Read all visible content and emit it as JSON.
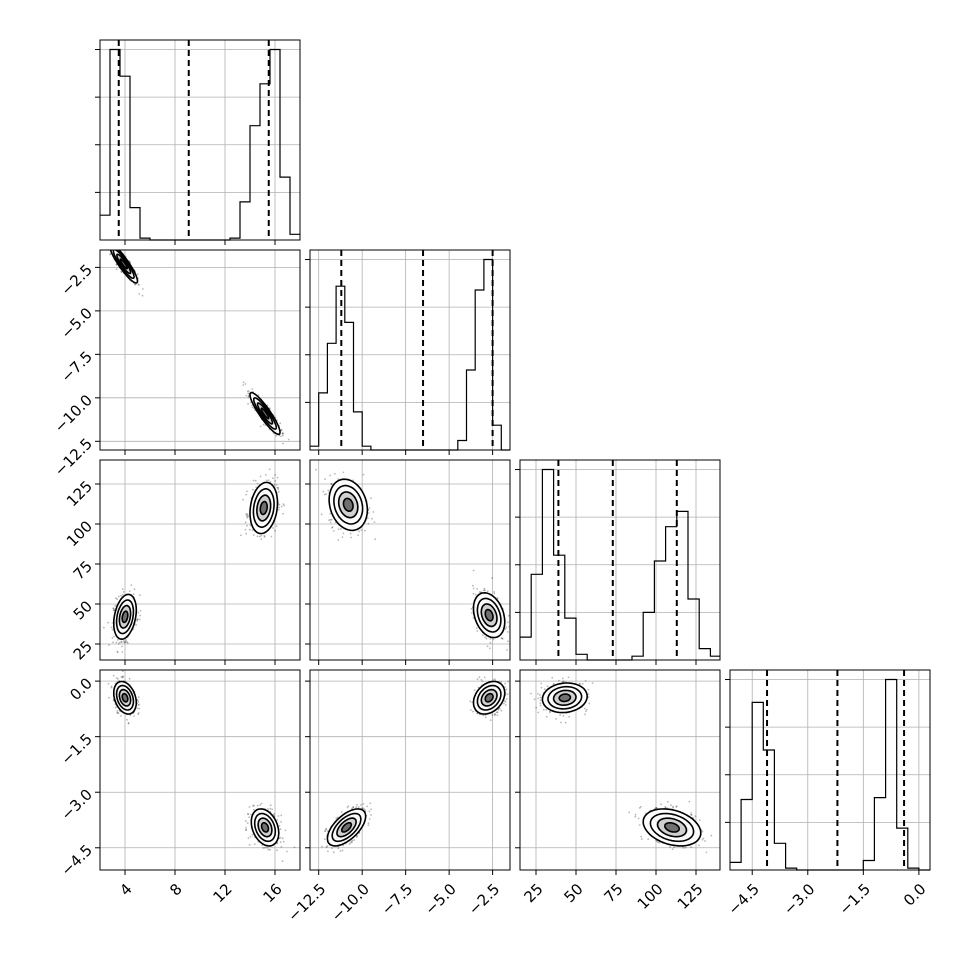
{
  "chart_data": {
    "type": "corner",
    "title": "",
    "grid": true,
    "parameters": [
      {
        "range": [
          2.0,
          18.0
        ],
        "ticks": [
          4,
          8,
          12,
          16
        ],
        "tick_labels": [
          "4",
          "8",
          "12",
          "16"
        ],
        "quantiles": [
          3.5,
          9.1,
          15.5
        ],
        "hist_edges": [
          2.0,
          2.8,
          3.6,
          4.4,
          5.2,
          6.0,
          6.8,
          7.6,
          8.4,
          9.2,
          10.0,
          10.8,
          11.6,
          12.4,
          13.2,
          14.0,
          14.8,
          15.6,
          16.4,
          17.2,
          18.0
        ],
        "hist_counts": [
          0.13,
          1.0,
          0.86,
          0.17,
          0.01,
          0,
          0,
          0,
          0,
          0,
          0,
          0,
          0,
          0.01,
          0.2,
          0.6,
          0.82,
          1.0,
          0.33,
          0.03
        ],
        "modes": [
          [
            3.8,
            0.55
          ],
          [
            15.2,
            0.65
          ]
        ]
      },
      {
        "range": [
          -13.0,
          -1.5
        ],
        "ticks": [
          -12.5,
          -10.0,
          -7.5,
          -5.0,
          -2.5
        ],
        "tick_labels": [
          "−12.5",
          "−10.0",
          "−7.5",
          "−5.0",
          "−2.5"
        ],
        "quantiles": [
          -11.2,
          -6.5,
          -2.5
        ],
        "hist_edges": [
          -13.0,
          -12.5,
          -12.0,
          -11.5,
          -11.0,
          -10.5,
          -10.0,
          -9.5,
          -9.0,
          -8.5,
          -8.0,
          -7.5,
          -7.0,
          -6.5,
          -6.0,
          -5.5,
          -5.0,
          -4.5,
          -4.0,
          -3.5,
          -3.0,
          -2.5,
          -2.0,
          -1.5
        ],
        "hist_counts": [
          0.02,
          0.3,
          0.56,
          0.86,
          0.67,
          0.2,
          0.02,
          0,
          0,
          0,
          0,
          0,
          0,
          0,
          0,
          0,
          0,
          0.05,
          0.42,
          0.84,
          1.0,
          0.13,
          0
        ],
        "modes": [
          [
            -11.0,
            0.6
          ],
          [
            -2.7,
            0.45
          ]
        ]
      },
      {
        "range": [
          15,
          140
        ],
        "ticks": [
          25,
          50,
          75,
          100,
          125
        ],
        "tick_labels": [
          "25",
          "50",
          "75",
          "100",
          "125"
        ],
        "quantiles": [
          39,
          73,
          113
        ],
        "hist_edges": [
          15,
          22,
          29,
          36,
          43,
          50,
          57,
          64,
          71,
          78,
          85,
          92,
          99,
          106,
          113,
          120,
          127,
          134,
          140
        ],
        "hist_counts": [
          0.12,
          0.45,
          1.0,
          0.55,
          0.22,
          0.03,
          0,
          0,
          0,
          0,
          0.02,
          0.25,
          0.52,
          0.7,
          0.78,
          0.32,
          0.06,
          0.02
        ],
        "modes": [
          [
            42,
            7
          ],
          [
            110,
            9
          ]
        ]
      },
      {
        "range": [
          -5.1,
          0.3
        ],
        "ticks": [
          -4.5,
          -3.0,
          -1.5,
          0.0
        ],
        "tick_labels": [
          "−4.5",
          "−3.0",
          "−1.5",
          "0.0"
        ],
        "quantiles": [
          -4.1,
          -2.2,
          -0.4
        ],
        "hist_edges": [
          -5.1,
          -4.8,
          -4.5,
          -4.2,
          -3.9,
          -3.6,
          -3.3,
          -3.0,
          -2.7,
          -2.4,
          -2.1,
          -1.8,
          -1.5,
          -1.2,
          -0.9,
          -0.6,
          -0.3,
          0.0,
          0.3
        ],
        "hist_counts": [
          0.04,
          0.37,
          0.88,
          0.63,
          0.14,
          0.01,
          0,
          0,
          0,
          0,
          0,
          0,
          0.05,
          0.38,
          1.0,
          0.22,
          0.01,
          0
        ],
        "modes": [
          [
            -3.95,
            0.25
          ],
          [
            -0.45,
            0.2
          ]
        ]
      }
    ],
    "panels_2d": [
      {
        "row": 1,
        "col": 0,
        "clusters": [
          {
            "x": 3.9,
            "y": -2.3,
            "sx": 0.55,
            "sy": 0.55,
            "rho": -0.9
          },
          {
            "x": 15.2,
            "y": -10.9,
            "sx": 0.6,
            "sy": 0.6,
            "rho": -0.9
          }
        ]
      },
      {
        "row": 2,
        "col": 0,
        "clusters": [
          {
            "x": 4.0,
            "y": 42,
            "sx": 0.45,
            "sy": 7,
            "rho": 0.3
          },
          {
            "x": 15.1,
            "y": 110,
            "sx": 0.55,
            "sy": 8,
            "rho": 0.2
          }
        ]
      },
      {
        "row": 2,
        "col": 1,
        "clusters": [
          {
            "x": -10.8,
            "y": 112,
            "sx": 0.55,
            "sy": 8,
            "rho": -0.2
          },
          {
            "x": -2.7,
            "y": 43,
            "sx": 0.45,
            "sy": 7,
            "rho": -0.3
          }
        ]
      },
      {
        "row": 3,
        "col": 0,
        "clusters": [
          {
            "x": 4.0,
            "y": -0.45,
            "sx": 0.45,
            "sy": 0.22,
            "rho": -0.3
          },
          {
            "x": 15.2,
            "y": -3.95,
            "sx": 0.55,
            "sy": 0.25,
            "rho": -0.3
          }
        ]
      },
      {
        "row": 3,
        "col": 1,
        "clusters": [
          {
            "x": -10.9,
            "y": -3.95,
            "sx": 0.55,
            "sy": 0.25,
            "rho": 0.6
          },
          {
            "x": -2.7,
            "y": -0.45,
            "sx": 0.45,
            "sy": 0.22,
            "rho": 0.3
          }
        ]
      },
      {
        "row": 3,
        "col": 2,
        "clusters": [
          {
            "x": 43,
            "y": -0.45,
            "sx": 7,
            "sy": 0.2,
            "rho": 0.1
          },
          {
            "x": 110,
            "y": -3.95,
            "sx": 9,
            "sy": 0.25,
            "rho": -0.3
          }
        ]
      }
    ]
  }
}
